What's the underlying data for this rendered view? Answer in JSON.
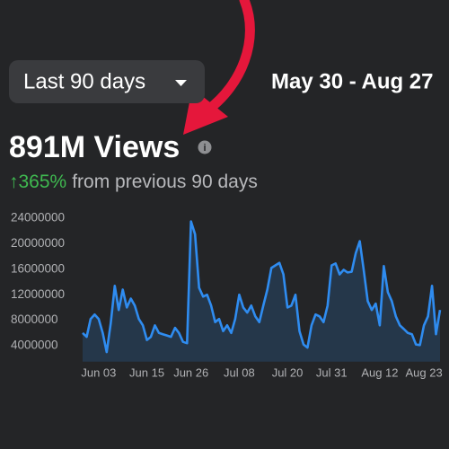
{
  "header": {
    "range_button": "Last 90 days",
    "date_range": "May 30 - Aug 27"
  },
  "summary": {
    "metric": "891M Views",
    "change": "↑365%",
    "change_context": "from previous 90 days"
  },
  "chart_data": {
    "type": "area",
    "categories": [
      null,
      null,
      null,
      null,
      "Jun 03",
      null,
      null,
      null,
      null,
      null,
      null,
      null,
      null,
      null,
      null,
      null,
      "Jun 15",
      null,
      null,
      null,
      null,
      null,
      null,
      null,
      null,
      null,
      null,
      "Jun 26",
      null,
      null,
      null,
      null,
      null,
      null,
      null,
      null,
      null,
      null,
      null,
      "Jul 08",
      null,
      null,
      null,
      null,
      null,
      null,
      null,
      null,
      null,
      null,
      null,
      "Jul 20",
      null,
      null,
      null,
      null,
      null,
      null,
      null,
      null,
      null,
      null,
      "Jul 31",
      null,
      null,
      null,
      null,
      null,
      null,
      null,
      null,
      null,
      null,
      null,
      "Aug 12",
      null,
      null,
      null,
      null,
      null,
      null,
      null,
      null,
      null,
      null,
      "Aug 23",
      null,
      null,
      null,
      null
    ],
    "series": [
      {
        "color": "#2f8cf0",
        "values": [
          6000000,
          5400000,
          8200000,
          8900000,
          8200000,
          6000000,
          3000000,
          7500000,
          13400000,
          9600000,
          12800000,
          10000000,
          11400000,
          10300000,
          8200000,
          7200000,
          4900000,
          5400000,
          7200000,
          6000000,
          5800000,
          5600000,
          5400000,
          6800000,
          6000000,
          4600000,
          4400000,
          23500000,
          21500000,
          13100000,
          11700000,
          12000000,
          10300000,
          7700000,
          8200000,
          6300000,
          7200000,
          6000000,
          8200000,
          12000000,
          10000000,
          9200000,
          10300000,
          8600000,
          7700000,
          10300000,
          12800000,
          16200000,
          16600000,
          17000000,
          15200000,
          10000000,
          10300000,
          12000000,
          6300000,
          4200000,
          3700000,
          7200000,
          8900000,
          8600000,
          7700000,
          10300000,
          16600000,
          16900000,
          15200000,
          15900000,
          15500000,
          15600000,
          18500000,
          20400000,
          15900000,
          11000000,
          9600000,
          10600000,
          7200000,
          16500000,
          12400000,
          11000000,
          8600000,
          7200000,
          6600000,
          6000000,
          5800000,
          4200000,
          4100000,
          7200000,
          8600000,
          13400000,
          5800000,
          9600000
        ]
      }
    ],
    "ylim": [
      1500000,
      24000000
    ],
    "yticks": [
      4000000,
      8000000,
      12000000,
      16000000,
      20000000,
      24000000
    ],
    "grid": false
  }
}
